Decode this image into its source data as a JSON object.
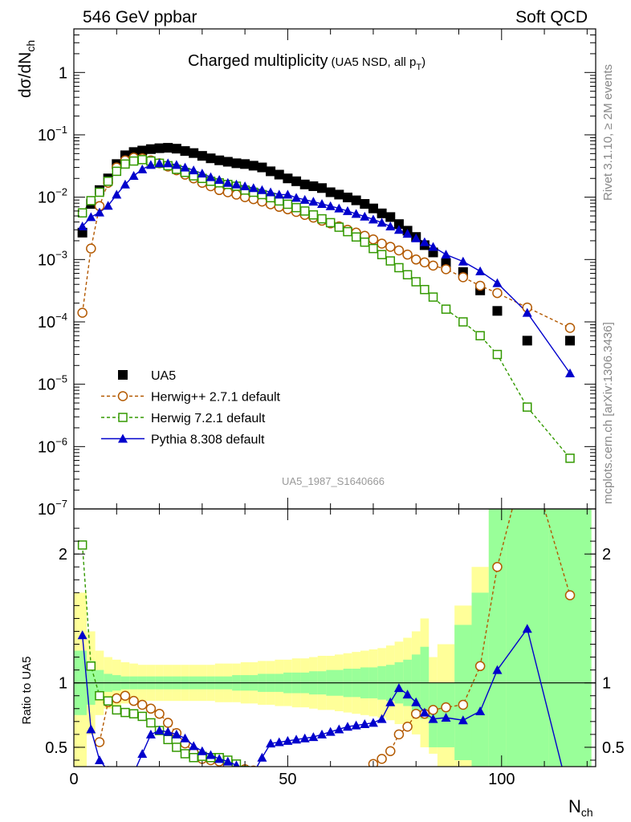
{
  "header": {
    "left": "546 GeV ppbar",
    "right": "Soft QCD",
    "side_top": "Rivet 3.1.10, ≥ 2M events",
    "side_bottom": "mcplots.cern.ch [arXiv:1306.3436]"
  },
  "chart_data": {
    "type": "line",
    "title": "Charged multiplicity",
    "subtitle": "(UA5 NSD, all p",
    "subtitle_sub": "T",
    "subtitle_end": ")",
    "ylabel_main": "dσ/dN",
    "ylabel_sub": "ch",
    "xlabel": "N",
    "xlabel_sub": "ch",
    "ratio_ylabel": "Ratio to UA5",
    "watermark": "UA5_1987_S1640666",
    "xlim": [
      0,
      122
    ],
    "ylim": [
      1e-07,
      5
    ],
    "ylog": true,
    "ratio_ylim": [
      0.35,
      2.35
    ],
    "xticks": [
      0,
      50,
      100
    ],
    "yticks_main": [
      {
        "base": "10",
        "exp": "−7",
        "v": 1e-07
      },
      {
        "base": "10",
        "exp": "−6",
        "v": 1e-06
      },
      {
        "base": "10",
        "exp": "−5",
        "v": 1e-05
      },
      {
        "base": "10",
        "exp": "−4",
        "v": 0.0001
      },
      {
        "base": "10",
        "exp": "−3",
        "v": 0.001
      },
      {
        "base": "10",
        "exp": "−2",
        "v": 0.01
      },
      {
        "base": "10",
        "exp": "−1",
        "v": 0.1
      },
      {
        "base": "1",
        "exp": "",
        "v": 1
      }
    ],
    "yticks_ratio": [
      "0.5",
      "1",
      "2"
    ],
    "legend": {
      "placement": "lower-left"
    },
    "series": [
      {
        "name": "UA5",
        "color": "#000000",
        "marker": "square-filled",
        "x": [
          2,
          4,
          6,
          8,
          10,
          12,
          14,
          16,
          18,
          20,
          22,
          24,
          26,
          28,
          30,
          32,
          34,
          36,
          38,
          40,
          42,
          44,
          46,
          48,
          50,
          52,
          54,
          56,
          58,
          60,
          62,
          64,
          66,
          68,
          70,
          72,
          74,
          76,
          78,
          80,
          82,
          84,
          87,
          91,
          95,
          99,
          106,
          116
        ],
        "y": [
          0.0027,
          0.0078,
          0.013,
          0.02,
          0.034,
          0.047,
          0.053,
          0.056,
          0.059,
          0.061,
          0.062,
          0.06,
          0.055,
          0.051,
          0.046,
          0.042,
          0.039,
          0.037,
          0.035,
          0.034,
          0.032,
          0.03,
          0.026,
          0.023,
          0.02,
          0.018,
          0.016,
          0.015,
          0.014,
          0.012,
          0.011,
          0.0099,
          0.0089,
          0.0078,
          0.0066,
          0.0055,
          0.0048,
          0.0037,
          0.0029,
          0.0023,
          0.0017,
          0.0013,
          0.00087,
          0.00063,
          0.00032,
          0.00015,
          5e-05,
          5e-05
        ]
      },
      {
        "name": "Herwig++ 2.7.1 default",
        "color": "#b35900",
        "marker": "circle-open",
        "dashed": true,
        "x": [
          2,
          4,
          6,
          8,
          10,
          12,
          14,
          16,
          18,
          20,
          22,
          24,
          26,
          28,
          30,
          32,
          34,
          36,
          38,
          40,
          42,
          44,
          46,
          48,
          50,
          52,
          54,
          56,
          58,
          60,
          62,
          64,
          66,
          68,
          70,
          72,
          74,
          76,
          78,
          80,
          82,
          84,
          87,
          91,
          95,
          99,
          106,
          116
        ],
        "y": [
          0.00014,
          0.0015,
          0.0072,
          0.017,
          0.03,
          0.039,
          0.043,
          0.042,
          0.039,
          0.035,
          0.031,
          0.027,
          0.023,
          0.02,
          0.017,
          0.015,
          0.013,
          0.012,
          0.011,
          0.01,
          0.0093,
          0.0085,
          0.0077,
          0.007,
          0.0064,
          0.0058,
          0.0052,
          0.0047,
          0.0042,
          0.0038,
          0.0034,
          0.003,
          0.0027,
          0.0024,
          0.0021,
          0.0018,
          0.0016,
          0.0014,
          0.0012,
          0.001,
          0.0009,
          0.0008,
          0.0007,
          0.00052,
          0.00038,
          0.00029,
          0.00017,
          8e-05
        ]
      },
      {
        "name": "Herwig 7.2.1 default",
        "color": "#339900",
        "marker": "square-open",
        "dashed": true,
        "x": [
          2,
          4,
          6,
          8,
          10,
          12,
          14,
          16,
          18,
          20,
          22,
          24,
          26,
          28,
          30,
          32,
          34,
          36,
          38,
          40,
          42,
          44,
          46,
          48,
          50,
          52,
          54,
          56,
          58,
          60,
          62,
          64,
          66,
          68,
          70,
          72,
          74,
          76,
          78,
          80,
          82,
          84,
          87,
          91,
          95,
          99,
          106,
          116
        ],
        "y": [
          0.0056,
          0.0088,
          0.012,
          0.018,
          0.026,
          0.034,
          0.038,
          0.04,
          0.038,
          0.035,
          0.032,
          0.028,
          0.025,
          0.022,
          0.02,
          0.018,
          0.017,
          0.016,
          0.015,
          0.013,
          0.012,
          0.011,
          0.0098,
          0.0087,
          0.0077,
          0.0068,
          0.006,
          0.0052,
          0.0045,
          0.0039,
          0.0033,
          0.0028,
          0.0023,
          0.0019,
          0.0015,
          0.0012,
          0.00095,
          0.00074,
          0.00057,
          0.00044,
          0.00033,
          0.00025,
          0.00016,
          0.0001,
          6e-05,
          3e-05,
          4.3e-06,
          6.5e-07
        ]
      },
      {
        "name": "Pythia 8.308 default",
        "color": "#0000cc",
        "marker": "triangle-filled",
        "x": [
          2,
          4,
          6,
          8,
          10,
          12,
          14,
          16,
          18,
          20,
          22,
          24,
          26,
          28,
          30,
          32,
          34,
          36,
          38,
          40,
          42,
          44,
          46,
          48,
          50,
          52,
          54,
          56,
          58,
          60,
          62,
          64,
          66,
          68,
          70,
          72,
          74,
          76,
          78,
          80,
          82,
          84,
          87,
          91,
          95,
          99,
          106,
          116
        ],
        "y": [
          0.0034,
          0.0048,
          0.0057,
          0.0073,
          0.011,
          0.016,
          0.022,
          0.028,
          0.033,
          0.035,
          0.035,
          0.033,
          0.03,
          0.027,
          0.024,
          0.021,
          0.019,
          0.017,
          0.016,
          0.015,
          0.014,
          0.013,
          0.012,
          0.011,
          0.011,
          0.0098,
          0.0091,
          0.0085,
          0.0078,
          0.0072,
          0.0066,
          0.006,
          0.0054,
          0.0049,
          0.0044,
          0.0039,
          0.0034,
          0.003,
          0.0026,
          0.0022,
          0.0019,
          0.0016,
          0.0012,
          0.00093,
          0.00065,
          0.00042,
          0.00014,
          1.5e-05
        ]
      }
    ],
    "ratio_series": [
      {
        "name": "Herwig++ 2.7.1 default",
        "x": [
          6,
          8,
          10,
          12,
          14,
          16,
          18,
          20,
          22,
          24,
          26,
          28,
          30,
          32,
          34,
          36,
          38,
          40,
          42,
          44,
          46,
          48,
          50,
          52,
          54,
          56,
          58,
          60,
          62,
          64,
          66,
          68,
          70,
          72,
          74,
          76,
          78,
          80,
          82,
          84,
          87,
          91,
          95,
          99,
          106,
          116
        ],
        "y": [
          0.54,
          0.85,
          0.88,
          0.9,
          0.86,
          0.83,
          0.8,
          0.76,
          0.69,
          0.61,
          0.53,
          0.46,
          0.41,
          0.4,
          0.39,
          0.36,
          0.34,
          0.33,
          0.32,
          0.31,
          0.3,
          0.3,
          0.3,
          0.3,
          0.3,
          0.3,
          0.3,
          0.3,
          0.3,
          0.3,
          0.3,
          0.3,
          0.37,
          0.41,
          0.47,
          0.6,
          0.66,
          0.76,
          0.76,
          0.79,
          0.81,
          0.83,
          1.13,
          1.9,
          2.8,
          1.68
        ]
      },
      {
        "name": "Herwig 7.2.1 default",
        "x": [
          2,
          4,
          6,
          8,
          10,
          12,
          14,
          16,
          18,
          20,
          22,
          24,
          26,
          28,
          30,
          32,
          34,
          36,
          38,
          40,
          42,
          44,
          46,
          48,
          50
        ],
        "y": [
          2.07,
          1.13,
          0.9,
          0.86,
          0.79,
          0.77,
          0.76,
          0.74,
          0.69,
          0.63,
          0.56,
          0.5,
          0.45,
          0.42,
          0.43,
          0.42,
          0.42,
          0.4,
          0.37,
          0.32,
          0.3,
          0.3,
          0.3,
          0.3,
          0.3
        ]
      },
      {
        "name": "Pythia 8.308 default",
        "x": [
          2,
          4,
          6,
          8,
          10,
          12,
          14,
          16,
          18,
          20,
          22,
          24,
          26,
          28,
          30,
          32,
          34,
          36,
          38,
          40,
          42,
          44,
          46,
          48,
          50,
          52,
          54,
          56,
          58,
          60,
          62,
          64,
          66,
          68,
          70,
          72,
          74,
          76,
          78,
          80,
          82,
          84,
          87,
          91,
          95,
          99,
          106,
          116
        ],
        "y": [
          1.37,
          0.64,
          0.4,
          0.32,
          0.3,
          0.3,
          0.3,
          0.45,
          0.6,
          0.63,
          0.62,
          0.6,
          0.57,
          0.51,
          0.47,
          0.44,
          0.41,
          0.39,
          0.36,
          0.3,
          0.3,
          0.42,
          0.53,
          0.54,
          0.55,
          0.56,
          0.57,
          0.58,
          0.6,
          0.62,
          0.64,
          0.66,
          0.67,
          0.68,
          0.69,
          0.72,
          0.85,
          0.96,
          0.91,
          0.85,
          0.77,
          0.72,
          0.73,
          0.71,
          0.78,
          1.1,
          1.42,
          0.1
        ]
      }
    ],
    "bands": {
      "edges": [
        0,
        3,
        5,
        7,
        9,
        11,
        13,
        15,
        17,
        19,
        21,
        23,
        25,
        27,
        29,
        31,
        33,
        35,
        37,
        39,
        41,
        43,
        45,
        47,
        49,
        51,
        53,
        55,
        57,
        59,
        61,
        63,
        65,
        67,
        69,
        71,
        73,
        75,
        77,
        79,
        81,
        83,
        85,
        89,
        93,
        97,
        101,
        111,
        121
      ],
      "stat_lo": [
        0.75,
        0.83,
        0.9,
        0.93,
        0.94,
        0.95,
        0.95,
        0.95,
        0.95,
        0.95,
        0.95,
        0.95,
        0.95,
        0.95,
        0.95,
        0.95,
        0.95,
        0.95,
        0.94,
        0.94,
        0.94,
        0.93,
        0.93,
        0.93,
        0.92,
        0.92,
        0.92,
        0.91,
        0.91,
        0.9,
        0.9,
        0.89,
        0.89,
        0.88,
        0.88,
        0.87,
        0.86,
        0.84,
        0.82,
        0.78,
        0.72,
        0.5,
        0.5,
        0.4,
        0.3,
        0.3,
        0.3,
        0.3
      ],
      "stat_hi": [
        1.25,
        1.17,
        1.1,
        1.07,
        1.06,
        1.05,
        1.05,
        1.05,
        1.05,
        1.05,
        1.05,
        1.05,
        1.05,
        1.05,
        1.05,
        1.05,
        1.05,
        1.05,
        1.06,
        1.06,
        1.06,
        1.07,
        1.07,
        1.07,
        1.08,
        1.08,
        1.08,
        1.09,
        1.09,
        1.1,
        1.1,
        1.11,
        1.11,
        1.12,
        1.12,
        1.13,
        1.14,
        1.16,
        1.18,
        1.22,
        1.28,
        1.0,
        1.0,
        1.45,
        1.7,
        2.6,
        2.6,
        2.6
      ],
      "tot_lo": [
        0.3,
        0.6,
        0.75,
        0.8,
        0.82,
        0.84,
        0.85,
        0.86,
        0.86,
        0.86,
        0.86,
        0.86,
        0.86,
        0.86,
        0.86,
        0.86,
        0.85,
        0.85,
        0.85,
        0.84,
        0.84,
        0.83,
        0.83,
        0.82,
        0.82,
        0.81,
        0.81,
        0.8,
        0.79,
        0.79,
        0.78,
        0.77,
        0.76,
        0.75,
        0.74,
        0.73,
        0.71,
        0.68,
        0.65,
        0.6,
        0.5,
        0.45,
        0.3,
        0.3,
        0.3,
        0.3,
        0.3,
        0.3
      ],
      "tot_hi": [
        1.7,
        1.4,
        1.25,
        1.2,
        1.18,
        1.16,
        1.15,
        1.14,
        1.14,
        1.14,
        1.14,
        1.14,
        1.14,
        1.14,
        1.14,
        1.14,
        1.15,
        1.15,
        1.15,
        1.16,
        1.16,
        1.17,
        1.17,
        1.18,
        1.18,
        1.19,
        1.19,
        1.2,
        1.21,
        1.21,
        1.22,
        1.23,
        1.24,
        1.25,
        1.26,
        1.27,
        1.29,
        1.32,
        1.35,
        1.4,
        1.5,
        1.2,
        1.3,
        1.6,
        1.9,
        2.6,
        2.6,
        2.6
      ]
    }
  }
}
